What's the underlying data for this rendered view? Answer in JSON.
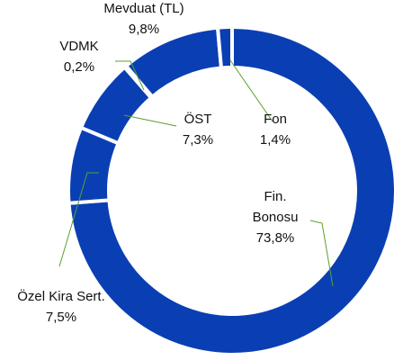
{
  "chart_data": {
    "type": "donut",
    "categories": [
      "Fin. Bonosu",
      "Özel Kira Sert.",
      "ÖST",
      "VDMK",
      "Mevduat (TL)",
      "Fon"
    ],
    "values": [
      73.8,
      7.5,
      7.3,
      0.2,
      9.8,
      1.4
    ],
    "value_labels": [
      "73,8%",
      "7,5%",
      "7,3%",
      "0,2%",
      "9,8%",
      "1,4%"
    ],
    "color": "#0a3fb4"
  }
}
